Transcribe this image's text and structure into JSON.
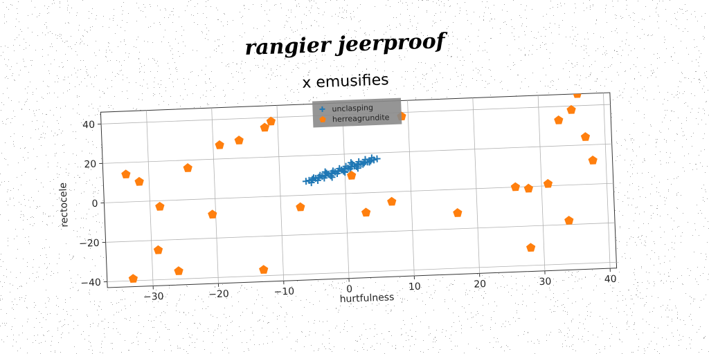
{
  "suptitle": "rangier jeerproof",
  "chart_data": {
    "type": "scatter",
    "title": "x emusifies",
    "xlabel": "hurtfulness",
    "ylabel": "rectocele",
    "xlim": [
      -37,
      41
    ],
    "ylim": [
      -43,
      46
    ],
    "xticks": [
      -30,
      -20,
      -10,
      0,
      10,
      20,
      30,
      40
    ],
    "yticks": [
      -40,
      -20,
      0,
      20,
      40
    ],
    "xtick_labels": [
      "−30",
      "−20",
      "−10",
      "0",
      "10",
      "20",
      "30",
      "40"
    ],
    "ytick_labels": [
      "−40",
      "−20",
      "0",
      "20",
      "40"
    ],
    "grid": true,
    "legend_position": "top-center",
    "series": [
      {
        "name": "unclasping",
        "marker": "plus",
        "color": "#1f77b4",
        "points": [
          [
            -6.0,
            7.0
          ],
          [
            -5.5,
            7.4
          ],
          [
            -5.0,
            7.9
          ],
          [
            -4.5,
            8.3
          ],
          [
            -4.0,
            8.8
          ],
          [
            -3.5,
            9.2
          ],
          [
            -3.0,
            9.7
          ],
          [
            -2.5,
            10.2
          ],
          [
            -2.0,
            10.6
          ],
          [
            -1.5,
            11.1
          ],
          [
            -1.0,
            11.5
          ],
          [
            -0.5,
            12.0
          ],
          [
            0.0,
            12.4
          ],
          [
            0.5,
            12.9
          ],
          [
            1.0,
            13.4
          ],
          [
            1.5,
            13.8
          ],
          [
            2.0,
            14.3
          ],
          [
            2.5,
            14.7
          ],
          [
            3.0,
            15.2
          ],
          [
            3.5,
            15.6
          ],
          [
            4.0,
            16.1
          ],
          [
            4.5,
            16.5
          ],
          [
            5.0,
            17.0
          ],
          [
            -5.2,
            6.2
          ],
          [
            -4.2,
            7.2
          ],
          [
            -3.2,
            8.3
          ],
          [
            -2.2,
            9.3
          ],
          [
            -1.2,
            10.3
          ],
          [
            -0.2,
            11.4
          ],
          [
            0.8,
            12.4
          ],
          [
            1.8,
            13.5
          ],
          [
            2.8,
            14.5
          ],
          [
            3.8,
            15.5
          ],
          [
            -4.8,
            8.6
          ],
          [
            -3.8,
            9.7
          ],
          [
            -2.8,
            10.7
          ],
          [
            -1.8,
            11.7
          ],
          [
            -0.8,
            12.8
          ],
          [
            0.2,
            13.8
          ],
          [
            1.2,
            14.8
          ],
          [
            2.2,
            15.9
          ],
          [
            3.2,
            16.9
          ],
          [
            4.2,
            17.6
          ],
          [
            -2.0,
            8.5
          ],
          [
            0.0,
            10.8
          ],
          [
            2.0,
            12.6
          ],
          [
            -3.0,
            11.4
          ],
          [
            1.0,
            15.6
          ]
        ]
      },
      {
        "name": "herreagrundite",
        "marker": "pentagon",
        "color": "#ff7f0e",
        "points": [
          [
            -33.5,
            14
          ],
          [
            -31.5,
            10
          ],
          [
            -28.5,
            -3
          ],
          [
            -29,
            -25
          ],
          [
            -33,
            -39
          ],
          [
            -26,
            -36
          ],
          [
            -24,
            16
          ],
          [
            -20.5,
            -8
          ],
          [
            -19,
            27
          ],
          [
            -16,
            29
          ],
          [
            -12,
            35
          ],
          [
            -11,
            38
          ],
          [
            -13,
            -37
          ],
          [
            -7,
            -6
          ],
          [
            1,
            9
          ],
          [
            3,
            -10
          ],
          [
            7,
            -5
          ],
          [
            9,
            38
          ],
          [
            17,
            -12
          ],
          [
            26,
            0
          ],
          [
            28,
            -1
          ],
          [
            28,
            -31
          ],
          [
            31,
            1
          ],
          [
            33,
            33
          ],
          [
            34,
            49
          ],
          [
            35,
            38
          ],
          [
            36,
            46
          ],
          [
            37,
            24
          ],
          [
            38,
            12
          ],
          [
            34,
            -18
          ]
        ]
      }
    ]
  }
}
